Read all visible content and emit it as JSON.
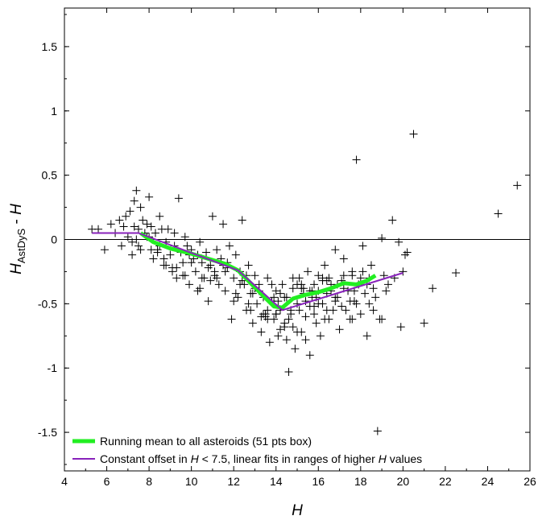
{
  "chart_data": {
    "type": "scatter",
    "title": "",
    "xlabel": "H",
    "ylabel_main": "H",
    "ylabel_sub": "AstDyS",
    "ylabel_rest": " - H",
    "xlim": [
      4,
      26
    ],
    "ylim": [
      -1.8,
      1.8
    ],
    "xticks": [
      4,
      6,
      8,
      10,
      12,
      14,
      16,
      18,
      20,
      22,
      24,
      26
    ],
    "yticks": [
      -1.5,
      -1,
      -0.5,
      0,
      0.5,
      1,
      1.5
    ],
    "ytick_labels": [
      "-1.5",
      "-1",
      "-0.5",
      "0",
      "0.5",
      "1",
      "1.5"
    ],
    "zero_line": true,
    "legend_position": "bottom-left",
    "legend": [
      {
        "label": "Running mean to all asteroids (51 pts box)",
        "color": "#22ee22"
      },
      {
        "label": "Constant offset in H < 7.5, linear fits in ranges of higher H values",
        "color": "#8822bb"
      }
    ],
    "series": [
      {
        "name": "Running mean to all asteroids (51 pts box)",
        "type": "line",
        "color": "#22ee22",
        "x": [
          7.6,
          8.2,
          9.0,
          10.0,
          10.8,
          11.6,
          12.2,
          12.8,
          13.4,
          13.9,
          14.3,
          14.8,
          15.4,
          16.0,
          16.6,
          17.2,
          17.8,
          18.3,
          18.7
        ],
        "y": [
          0.05,
          -0.02,
          -0.07,
          -0.11,
          -0.15,
          -0.19,
          -0.24,
          -0.34,
          -0.44,
          -0.52,
          -0.53,
          -0.46,
          -0.43,
          -0.41,
          -0.38,
          -0.34,
          -0.35,
          -0.32,
          -0.28
        ]
      },
      {
        "name": "Constant offset in H < 7.5, linear fits in ranges of higher H values",
        "type": "line",
        "color": "#8822bb",
        "x": [
          5.3,
          7.5,
          12.2,
          14.3,
          20.0
        ],
        "y": [
          0.05,
          0.05,
          -0.24,
          -0.55,
          -0.26
        ]
      },
      {
        "name": "",
        "type": "scatter",
        "color": "#000000",
        "x": [
          5.3,
          5.6,
          5.9,
          6.2,
          6.4,
          6.6,
          6.7,
          6.9,
          7.0,
          7.1,
          7.2,
          7.3,
          7.3,
          7.4,
          7.5,
          7.5,
          7.6,
          7.7,
          7.8,
          7.9,
          8.0,
          8.1,
          8.2,
          8.3,
          8.4,
          8.5,
          8.6,
          8.7,
          8.8,
          8.9,
          9.0,
          9.1,
          9.2,
          9.3,
          9.4,
          9.5,
          9.6,
          9.7,
          9.8,
          9.9,
          10.0,
          10.1,
          10.2,
          10.3,
          10.4,
          10.5,
          10.6,
          10.7,
          10.8,
          10.9,
          11.0,
          11.1,
          11.2,
          11.3,
          11.4,
          11.5,
          11.6,
          11.7,
          11.8,
          11.9,
          12.0,
          12.1,
          12.2,
          12.3,
          12.4,
          12.5,
          12.6,
          12.7,
          12.8,
          12.9,
          13.0,
          13.1,
          13.2,
          13.3,
          13.4,
          13.5,
          13.6,
          13.7,
          13.8,
          13.9,
          14.0,
          14.1,
          14.2,
          14.3,
          14.4,
          14.5,
          14.6,
          14.7,
          14.8,
          14.9,
          15.0,
          15.1,
          15.2,
          15.3,
          15.4,
          15.5,
          15.6,
          15.7,
          15.8,
          15.9,
          16.0,
          16.1,
          16.2,
          16.3,
          16.4,
          16.5,
          16.6,
          16.7,
          16.8,
          16.9,
          17.0,
          17.1,
          17.2,
          17.3,
          17.4,
          17.5,
          17.6,
          17.7,
          17.8,
          17.9,
          18.0,
          18.1,
          18.2,
          18.3,
          18.4,
          18.5,
          18.6,
          18.7,
          18.8,
          18.9,
          19.0,
          19.1,
          19.2,
          19.3,
          19.5,
          19.6,
          19.8,
          19.9,
          20.0,
          20.1,
          20.2,
          20.5,
          21.0,
          21.4,
          22.5,
          24.5,
          25.4,
          7.2,
          7.6,
          8.0,
          8.4,
          8.8,
          9.2,
          9.6,
          10.0,
          10.4,
          10.8,
          11.2,
          11.6,
          12.0,
          12.4,
          12.8,
          13.2,
          13.6,
          14.0,
          14.4,
          14.8,
          15.2,
          15.6,
          16.0,
          16.4,
          16.8,
          17.2,
          17.6,
          18.0,
          18.4,
          6.8,
          7.4,
          8.1,
          8.7,
          9.3,
          9.9,
          10.5,
          11.1,
          11.7,
          12.3,
          12.9,
          13.5,
          14.1,
          14.7,
          15.3,
          15.9,
          16.5,
          17.1,
          17.7,
          18.3,
          13.8,
          14.2,
          14.6,
          15.0,
          15.4,
          15.8,
          16.2,
          16.6,
          13.6,
          14.4,
          15.2,
          16.0,
          16.8,
          17.6,
          12.6,
          13.0,
          13.4,
          13.8,
          14.2,
          14.6,
          15.0,
          15.4,
          15.8,
          16.2,
          7.9,
          8.5,
          9.1,
          9.7,
          10.3,
          10.9,
          11.5,
          12.1,
          12.7,
          13.3,
          13.9,
          14.5,
          15.1,
          15.7,
          16.3,
          16.9,
          17.5,
          18.1,
          14.0,
          14.8,
          15.6,
          16.4,
          17.2,
          17.8,
          18.6,
          19.0
        ],
        "y": [
          0.08,
          0.08,
          -0.08,
          0.12,
          0.05,
          0.15,
          -0.05,
          0.18,
          0.02,
          0.22,
          -0.12,
          0.3,
          0.1,
          0.38,
          0.08,
          -0.05,
          0.25,
          0.15,
          0.05,
          0.12,
          0.33,
          0.1,
          -0.15,
          0.05,
          -0.08,
          0.18,
          0.08,
          -0.2,
          -0.02,
          0.08,
          -0.12,
          -0.25,
          0.05,
          -0.3,
          0.32,
          -0.1,
          -0.18,
          0.02,
          -0.05,
          -0.35,
          -0.08,
          -0.15,
          -0.25,
          -0.4,
          -0.02,
          -0.18,
          -0.3,
          -0.1,
          -0.48,
          -0.2,
          0.18,
          -0.28,
          -0.08,
          -0.35,
          -0.15,
          0.12,
          -0.4,
          -0.22,
          -0.05,
          -0.62,
          -0.3,
          -0.12,
          -0.45,
          -0.25,
          0.15,
          -0.35,
          -0.55,
          -0.2,
          -0.42,
          -0.65,
          -0.28,
          -0.5,
          -0.35,
          -0.72,
          -0.45,
          -0.58,
          -0.3,
          -0.8,
          -0.48,
          -0.62,
          -0.4,
          -0.75,
          -0.55,
          -0.35,
          -0.68,
          -0.45,
          -1.03,
          -0.58,
          -0.38,
          -0.85,
          -0.5,
          -0.3,
          -0.72,
          -0.42,
          -0.6,
          -0.25,
          -0.9,
          -0.45,
          -0.35,
          -0.65,
          -0.28,
          -0.75,
          -0.5,
          -0.2,
          -0.42,
          -0.62,
          -0.35,
          -0.55,
          -0.08,
          -0.45,
          -0.7,
          -0.32,
          -0.15,
          -0.55,
          -0.4,
          -0.62,
          -0.25,
          -0.48,
          0.62,
          -0.35,
          -0.58,
          -0.05,
          -0.42,
          -0.75,
          -0.3,
          -0.2,
          -0.55,
          -0.45,
          -1.49,
          -0.62,
          0.01,
          -0.28,
          -0.4,
          -0.35,
          0.15,
          -0.3,
          -0.02,
          -0.68,
          -0.25,
          -0.12,
          -0.1,
          0.82,
          -0.65,
          -0.38,
          -0.26,
          0.2,
          0.42,
          -0.02,
          -0.08,
          0.02,
          -0.1,
          -0.2,
          -0.05,
          -0.28,
          -0.18,
          -0.38,
          -0.22,
          -0.3,
          -0.25,
          -0.48,
          -0.32,
          -0.55,
          -0.4,
          -0.62,
          -0.58,
          -0.45,
          -0.68,
          -0.35,
          -0.52,
          -0.4,
          -0.55,
          -0.48,
          -0.38,
          -0.62,
          -0.3,
          -0.5,
          0.1,
          0.0,
          -0.08,
          -0.15,
          -0.22,
          -0.12,
          -0.3,
          -0.25,
          -0.18,
          -0.35,
          -0.42,
          -0.6,
          -0.48,
          -0.55,
          -0.38,
          -0.45,
          -0.3,
          -0.52,
          -0.4,
          -0.35,
          -0.35,
          -0.42,
          -0.62,
          -0.72,
          -0.48,
          -0.58,
          -0.3,
          -0.4,
          -0.55,
          -0.65,
          -0.38,
          -0.5,
          -0.45,
          -0.28,
          -0.28,
          -0.38,
          -0.58,
          -0.48,
          -0.7,
          -0.62,
          -0.35,
          -0.78,
          -0.52,
          -0.32,
          0.02,
          -0.05,
          -0.22,
          -0.28,
          -0.12,
          -0.32,
          -0.2,
          -0.42,
          -0.5,
          -0.6,
          -0.45,
          -0.78,
          -0.55,
          -0.4,
          -0.62,
          -0.35,
          -0.48,
          -0.25,
          -0.58,
          -0.3,
          -0.4,
          -0.32,
          -0.28,
          -0.5,
          -0.38,
          -0.62
        ]
      }
    ]
  }
}
